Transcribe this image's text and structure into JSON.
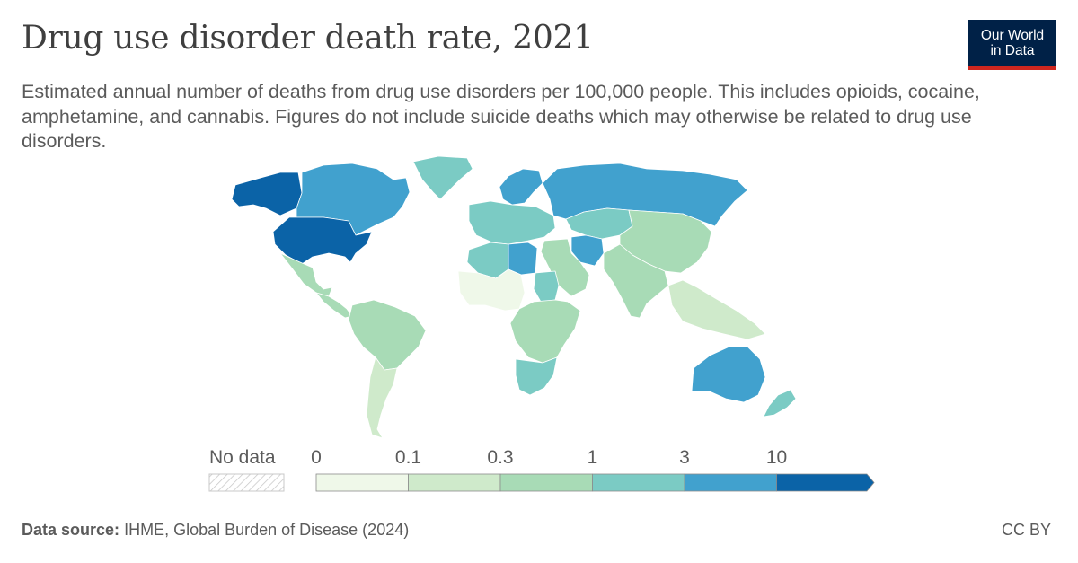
{
  "header": {
    "title": "Drug use disorder death rate, 2021",
    "subtitle": "Estimated annual number of deaths from drug use disorders per 100,000 people. This includes opioids, cocaine, amphetamine, and cannabis. Figures do not include suicide deaths which may otherwise be related to drug use disorders.",
    "logo_line1": "Our World",
    "logo_line2": "in Data"
  },
  "legend": {
    "no_data_label": "No data",
    "ticks": [
      "0",
      "0.1",
      "0.3",
      "1",
      "3",
      "10"
    ],
    "bins": [
      {
        "from": 0,
        "to": 0.1,
        "color": "#eff8e9"
      },
      {
        "from": 0.1,
        "to": 0.3,
        "color": "#cfeacb"
      },
      {
        "from": 0.3,
        "to": 1,
        "color": "#a8dbb6"
      },
      {
        "from": 1,
        "to": 3,
        "color": "#7bcbc4"
      },
      {
        "from": 3,
        "to": 10,
        "color": "#41a1ce"
      },
      {
        "from": 10,
        "to": null,
        "color": "#0b63a7"
      }
    ]
  },
  "regions": [
    {
      "name": "alaska",
      "bin": 5
    },
    {
      "name": "canada",
      "bin": 4
    },
    {
      "name": "greenland",
      "bin": 3
    },
    {
      "name": "united-states",
      "bin": 5
    },
    {
      "name": "mexico",
      "bin": 2
    },
    {
      "name": "central-america",
      "bin": 2
    },
    {
      "name": "south-america",
      "bin": 2
    },
    {
      "name": "southern-cone",
      "bin": 1
    },
    {
      "name": "western-europe",
      "bin": 3
    },
    {
      "name": "scandinavia",
      "bin": 4
    },
    {
      "name": "russia",
      "bin": 4
    },
    {
      "name": "central-asia",
      "bin": 3
    },
    {
      "name": "iran",
      "bin": 4
    },
    {
      "name": "middle-east",
      "bin": 2
    },
    {
      "name": "china",
      "bin": 2
    },
    {
      "name": "india",
      "bin": 2
    },
    {
      "name": "southeast-asia",
      "bin": 1
    },
    {
      "name": "west-africa",
      "bin": 0
    },
    {
      "name": "north-africa",
      "bin": 3
    },
    {
      "name": "libya",
      "bin": 4
    },
    {
      "name": "sudan",
      "bin": 3
    },
    {
      "name": "central-africa",
      "bin": 2
    },
    {
      "name": "southern-africa",
      "bin": 3
    },
    {
      "name": "australia",
      "bin": 4
    },
    {
      "name": "new-zealand",
      "bin": 3
    }
  ],
  "footer": {
    "source_label": "Data source:",
    "source_text": "IHME, Global Burden of Disease (2024)",
    "license": "CC BY"
  }
}
